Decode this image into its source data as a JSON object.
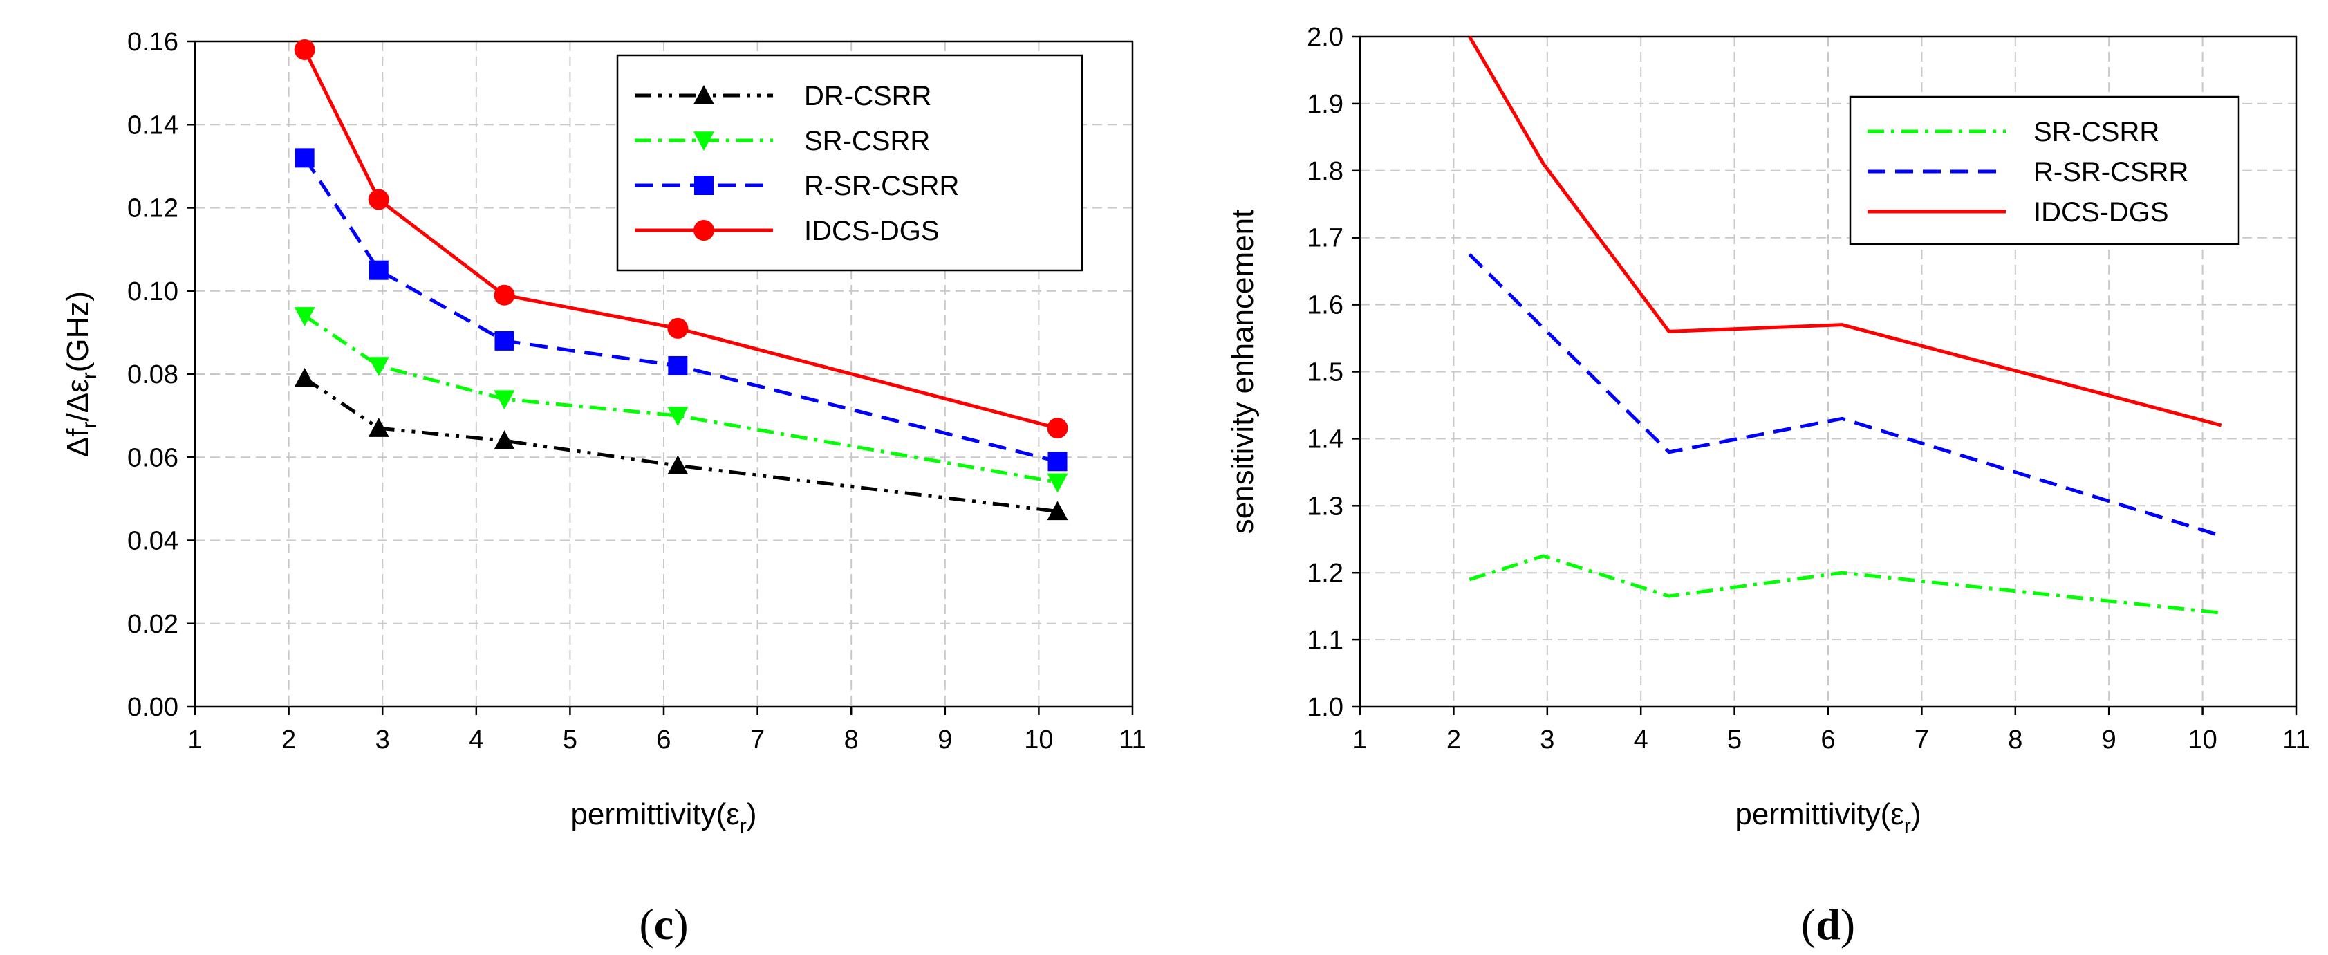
{
  "colors": {
    "DR-CSRR": "#000000",
    "SR-CSRR": "#00ff00",
    "R-SR-CSRR": "#0000ff",
    "IDCS-DGS": "#ff0000"
  },
  "chart_data": [
    {
      "type": "line",
      "caption_letter": "c",
      "xlabel_prefix": "permittivity(",
      "xlabel_symbol": "ε",
      "xlabel_sub": "r",
      "xlabel_suffix": ")",
      "ylabel": "Δf r /Δε r (GHz)",
      "ylabel_parts": [
        "Δf",
        "r",
        "/Δε",
        "r",
        "(GHz)"
      ],
      "xlim": [
        1,
        11
      ],
      "ylim": [
        0,
        0.16
      ],
      "xticks": [
        1,
        2,
        3,
        4,
        5,
        6,
        7,
        8,
        9,
        10,
        11
      ],
      "yticks": [
        0.0,
        0.02,
        0.04,
        0.06,
        0.08,
        0.1,
        0.12,
        0.14,
        0.16
      ],
      "ytick_labels": [
        "0.00",
        "0.02",
        "0.04",
        "0.06",
        "0.08",
        "0.10",
        "0.12",
        "0.14",
        "0.16"
      ],
      "grid": true,
      "legend_position": "top-right",
      "x": [
        2.17,
        2.96,
        4.3,
        6.15,
        10.2
      ],
      "series": [
        {
          "name": "DR-CSRR",
          "style": "dash-dot-dot",
          "marker": "triangle-up",
          "values": [
            0.079,
            0.067,
            0.064,
            0.058,
            0.047
          ]
        },
        {
          "name": "SR-CSRR",
          "style": "dash-dot",
          "marker": "triangle-down",
          "values": [
            0.094,
            0.082,
            0.074,
            0.07,
            0.054
          ]
        },
        {
          "name": "R-SR-CSRR",
          "style": "dash",
          "marker": "square",
          "values": [
            0.132,
            0.105,
            0.088,
            0.082,
            0.059
          ]
        },
        {
          "name": "IDCS-DGS",
          "style": "solid",
          "marker": "circle",
          "values": [
            0.158,
            0.122,
            0.099,
            0.091,
            0.067
          ]
        }
      ]
    },
    {
      "type": "line",
      "caption_letter": "d",
      "xlabel_prefix": "permittivity(",
      "xlabel_symbol": "ε",
      "xlabel_sub": "r",
      "xlabel_suffix": ")",
      "ylabel": "sensitivity enhancement",
      "xlim": [
        1,
        11
      ],
      "ylim": [
        1.0,
        2.0
      ],
      "xticks": [
        1,
        2,
        3,
        4,
        5,
        6,
        7,
        8,
        9,
        10,
        11
      ],
      "yticks": [
        1.0,
        1.1,
        1.2,
        1.3,
        1.4,
        1.5,
        1.6,
        1.7,
        1.8,
        1.9,
        2.0
      ],
      "ytick_labels": [
        "1.0",
        "1.1",
        "1.2",
        "1.3",
        "1.4",
        "1.5",
        "1.6",
        "1.7",
        "1.8",
        "1.9",
        "2.0"
      ],
      "grid": true,
      "legend_position": "top-right",
      "x": [
        2.17,
        2.96,
        4.3,
        6.15,
        10.2
      ],
      "series": [
        {
          "name": "SR-CSRR",
          "style": "dash-dot",
          "marker": "none",
          "values": [
            1.19,
            1.225,
            1.165,
            1.2,
            1.14
          ]
        },
        {
          "name": "R-SR-CSRR",
          "style": "dash",
          "marker": "none",
          "values": [
            1.675,
            1.565,
            1.38,
            1.43,
            1.255
          ]
        },
        {
          "name": "IDCS-DGS",
          "style": "solid",
          "marker": "none",
          "values": [
            2.0,
            1.81,
            1.56,
            1.57,
            1.42
          ]
        }
      ]
    }
  ]
}
